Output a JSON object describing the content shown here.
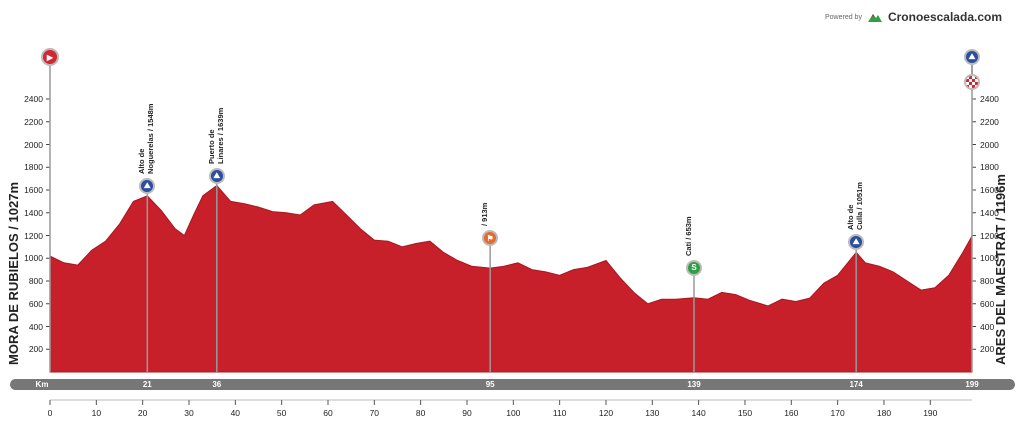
{
  "brand": {
    "powered": "Powered by",
    "name": "Cronoescalada.com"
  },
  "start_label": "MORA DE RUBIELOS / 1027m",
  "finish_label": "ARES DEL MAESTRAT / 1196m",
  "km_bar": {
    "label": "Km",
    "marks": [
      "21",
      "36",
      "95",
      "139",
      "174",
      "199"
    ]
  },
  "colors": {
    "profile": "#c8202a",
    "kmbar": "#777777",
    "kom": "#2b4ea0",
    "sprint": "#2f9e44",
    "feed": "#e8692a",
    "start": "#d32630"
  },
  "chart_data": {
    "type": "area",
    "title": "",
    "xlabel": "",
    "ylabel": "",
    "xlim": [
      0,
      199
    ],
    "ylim": [
      0,
      2400
    ],
    "x_ticks": [
      0,
      10,
      20,
      30,
      40,
      50,
      60,
      70,
      80,
      90,
      100,
      110,
      120,
      130,
      140,
      150,
      160,
      170,
      180,
      190
    ],
    "y_ticks": [
      200,
      400,
      600,
      800,
      1000,
      1200,
      1400,
      1600,
      1800,
      2000,
      2200,
      2400
    ],
    "grid": false,
    "series": [
      {
        "x": [
          0,
          3,
          6,
          9,
          12,
          15,
          18,
          21,
          24,
          27,
          29,
          31,
          33,
          36,
          39,
          42,
          45,
          48,
          51,
          54,
          57,
          61,
          64,
          67,
          70,
          73,
          76,
          79,
          82,
          85,
          88,
          91,
          95,
          98,
          101,
          104,
          107,
          110,
          113,
          116,
          120,
          123,
          126,
          129,
          132,
          135,
          139,
          142,
          145,
          148,
          151,
          155,
          158,
          161,
          164,
          167,
          170,
          174,
          176,
          179,
          182,
          185,
          188,
          191,
          194,
          197,
          199
        ],
        "y": [
          1020,
          960,
          940,
          1070,
          1150,
          1300,
          1500,
          1548,
          1420,
          1260,
          1200,
          1380,
          1550,
          1639,
          1500,
          1480,
          1450,
          1410,
          1400,
          1380,
          1470,
          1500,
          1380,
          1260,
          1160,
          1150,
          1100,
          1130,
          1150,
          1050,
          980,
          930,
          913,
          930,
          960,
          900,
          880,
          850,
          900,
          920,
          980,
          830,
          700,
          600,
          640,
          640,
          653,
          640,
          700,
          680,
          630,
          580,
          640,
          620,
          650,
          780,
          850,
          1051,
          960,
          930,
          880,
          800,
          720,
          740,
          850,
          1050,
          1196
        ]
      }
    ],
    "points": [
      {
        "km": 21,
        "altitude": 1548,
        "kind": "kom",
        "label": "Alto de\nNoguerelas / 1548m"
      },
      {
        "km": 36,
        "altitude": 1639,
        "kind": "kom",
        "label": "Puerto de\nLinares / 1639m"
      },
      {
        "km": 95,
        "altitude": 913,
        "kind": "feed",
        "label": "/ 913m"
      },
      {
        "km": 139,
        "altitude": 653,
        "kind": "sprint",
        "label": "Catí / 653m"
      },
      {
        "km": 174,
        "altitude": 1051,
        "kind": "kom",
        "label": "Alto de\nCulla / 1051m"
      }
    ]
  }
}
